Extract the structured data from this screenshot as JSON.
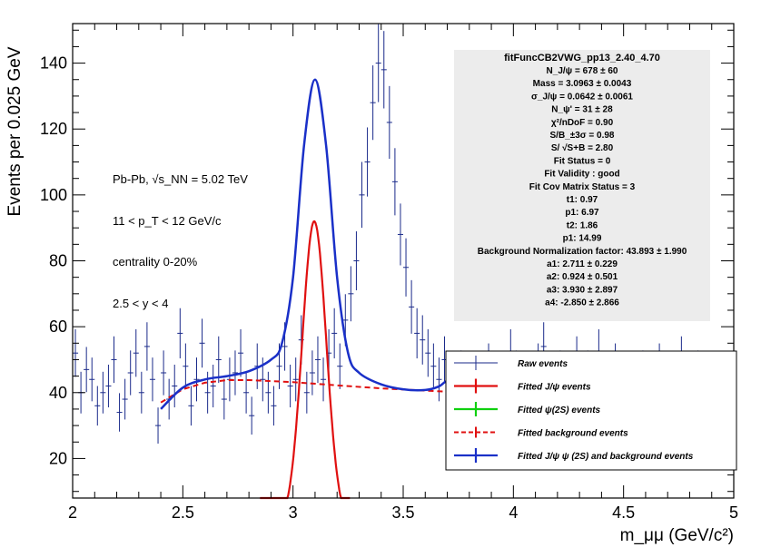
{
  "chart_data": {
    "type": "scatter",
    "title": "",
    "xlabel": "m_μμ (GeV/c²)",
    "ylabel": "Events per 0.025 GeV",
    "xlim": [
      2,
      5
    ],
    "ylim": [
      8,
      152
    ],
    "x_ticks": [
      "2",
      "2.5",
      "3",
      "3.5",
      "4",
      "4.5",
      "5"
    ],
    "y_ticks": [
      "20",
      "40",
      "60",
      "80",
      "100",
      "120",
      "140"
    ],
    "annotations": [
      "Pb-Pb, √s_NN = 5.02 TeV",
      "11 < p_T < 12 GeV/c",
      "centrality 0-20%",
      "2.5 < y < 4"
    ],
    "stats_box": {
      "title": "fitFuncCB2VWG_pp13_2.40_4.70",
      "lines": [
        "N_J/ψ = 678 ± 60",
        "Mass = 3.0963 ± 0.0043",
        "σ_J/ψ = 0.0642 ± 0.0061",
        "N_ψ' = 31 ± 28",
        "χ²/nDoF = 0.90",
        "S/B_±3σ = 0.98",
        "S/ √S+B = 2.80",
        "Fit Status = 0",
        "Fit Validity : good",
        "Fit Cov Matrix Status = 3",
        "t1: 0.97",
        "p1: 6.97",
        "t2: 1.86",
        "p1: 14.99",
        "Background Normalization factor: 43.893 ± 1.990",
        "a1: 2.711 ± 0.229",
        "a2: 0.924 ± 0.501",
        "a3: 3.930 ± 2.897",
        "a4: -2.850 ± 2.866"
      ]
    },
    "legend": [
      {
        "label": "Raw events",
        "color": "#1a2a8a",
        "style": "errorbar"
      },
      {
        "label": "Fitted J/ψ events",
        "color": "#e01010",
        "style": "errorbar"
      },
      {
        "label": "Fitted  ψ(2S) events",
        "color": "#10d010",
        "style": "errorbar"
      },
      {
        "label": "Fitted background events",
        "color": "#e01010",
        "style": "dashed"
      },
      {
        "label": "Fitted J/ψ  ψ (2S) and background events",
        "color": "#1a30c8",
        "style": "errorbar"
      }
    ],
    "legend_position": "bottom-right",
    "grid": false,
    "bin_width": 0.025,
    "raw_x_start": 2.0125,
    "raw_counts": [
      52,
      40,
      47,
      44,
      36,
      40,
      42,
      50,
      34,
      38,
      46,
      52,
      40,
      54,
      44,
      30,
      46,
      38,
      42,
      58,
      48,
      36,
      44,
      55,
      40,
      42,
      50,
      38,
      44,
      46,
      52,
      40,
      33,
      48,
      44,
      40,
      36,
      48,
      54,
      42,
      44,
      56,
      40,
      46,
      50,
      44,
      52,
      58,
      48,
      62,
      70,
      80,
      100,
      110,
      128,
      140,
      138,
      122,
      104,
      88,
      78,
      66,
      58,
      56,
      52,
      48,
      44,
      50,
      42,
      40,
      46,
      38,
      44,
      36,
      42,
      48,
      40,
      38,
      44,
      52,
      46,
      40,
      42,
      36,
      48,
      54,
      42,
      40,
      46,
      38,
      44,
      50,
      42,
      46,
      38,
      52,
      44,
      40,
      48,
      40,
      42,
      44,
      40,
      46,
      38,
      42,
      48,
      40,
      44,
      36,
      50,
      42,
      38,
      46,
      40,
      44,
      38,
      42,
      36,
      40
    ],
    "fit_x_range": [
      2.4,
      5.0
    ],
    "jpsi_signal": {
      "mean": 3.0963,
      "sigma": 0.0642,
      "peak": 92,
      "x_range": [
        2.85,
        3.26
      ]
    },
    "background": {
      "x_range": [
        2.4,
        4.7
      ],
      "points": [
        [
          2.4,
          37
        ],
        [
          2.5,
          41
        ],
        [
          2.6,
          43
        ],
        [
          2.7,
          43.8
        ],
        [
          2.8,
          43.8
        ],
        [
          3.0,
          43.2
        ],
        [
          3.2,
          42.2
        ],
        [
          3.4,
          41.3
        ],
        [
          3.6,
          40.6
        ],
        [
          3.8,
          40.0
        ],
        [
          4.0,
          39.4
        ],
        [
          4.2,
          38.8
        ],
        [
          4.5,
          38
        ],
        [
          4.7,
          37.3
        ]
      ]
    },
    "total_fit_points": [
      [
        2.4,
        35
      ],
      [
        2.5,
        41.5
      ],
      [
        2.6,
        44
      ],
      [
        2.7,
        45
      ],
      [
        2.8,
        46.5
      ],
      [
        2.9,
        50
      ],
      [
        2.95,
        55
      ],
      [
        3.0,
        75
      ],
      [
        3.05,
        115
      ],
      [
        3.1,
        135
      ],
      [
        3.15,
        115
      ],
      [
        3.2,
        75
      ],
      [
        3.25,
        52
      ],
      [
        3.3,
        46
      ],
      [
        3.4,
        42.5
      ],
      [
        3.5,
        41
      ],
      [
        3.6,
        40.8
      ],
      [
        3.66,
        41.8
      ],
      [
        3.7,
        43.5
      ],
      [
        3.75,
        42.5
      ],
      [
        3.8,
        40.5
      ],
      [
        4.0,
        39.5
      ],
      [
        4.2,
        39
      ],
      [
        4.5,
        38.5
      ],
      [
        5.0,
        37.5
      ]
    ]
  }
}
